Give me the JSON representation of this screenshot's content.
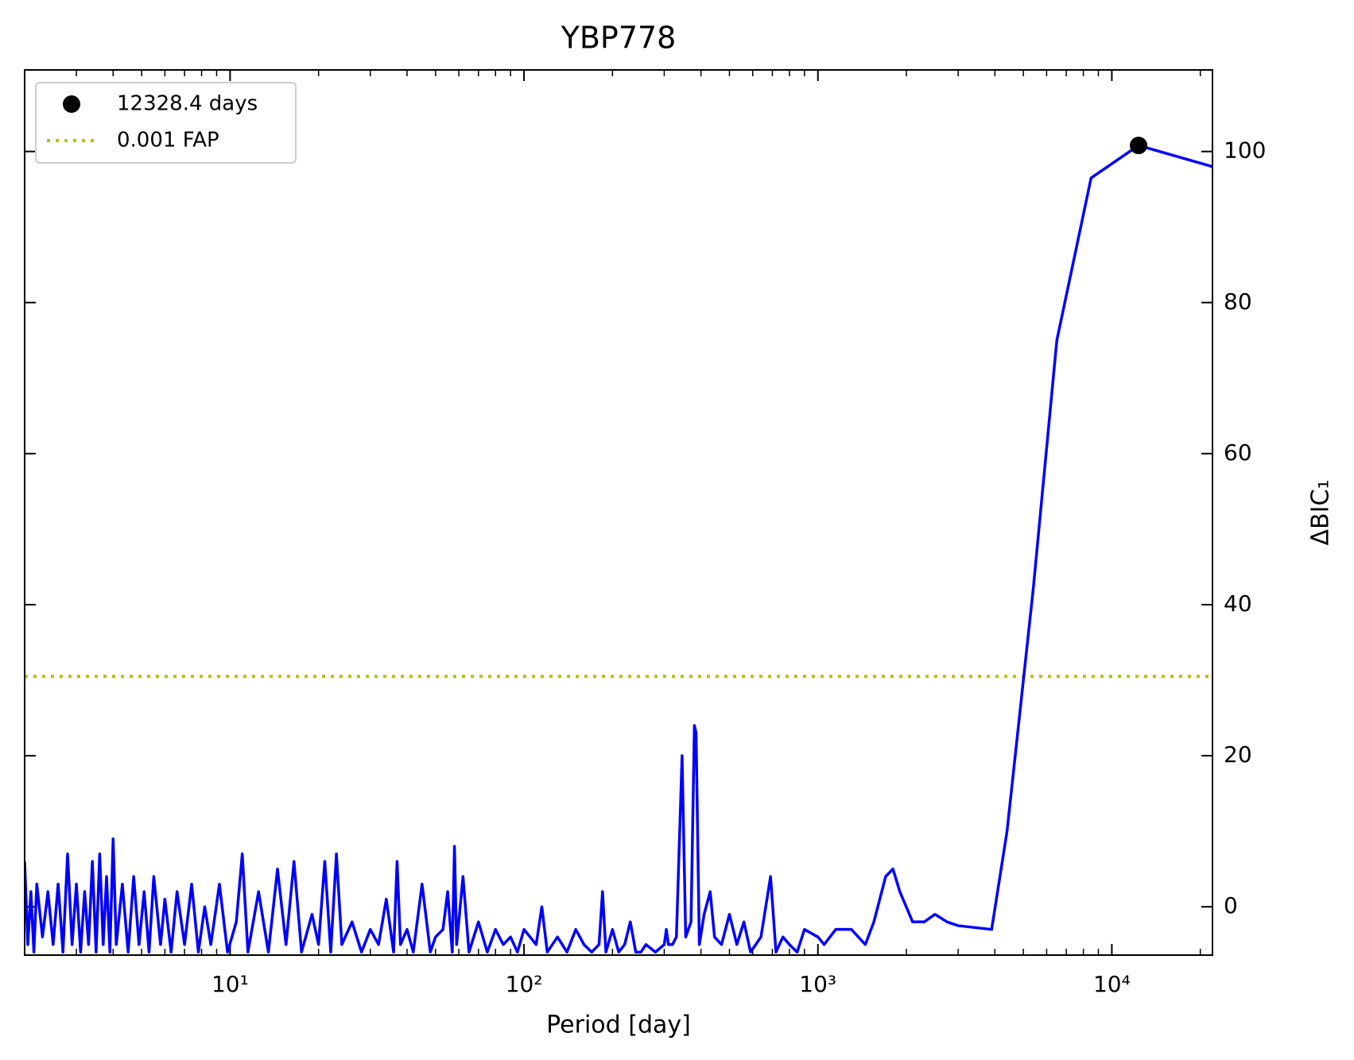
{
  "chart_data": {
    "type": "line",
    "title": "YBP778",
    "xlabel": "Period [day]",
    "ylabel": "ΔBIC₁",
    "xscale": "log",
    "xlim": [
      2,
      22000
    ],
    "ylim": [
      -6.4,
      110.8
    ],
    "xticks": [
      {
        "value": 10,
        "label": "10¹"
      },
      {
        "value": 100,
        "label": "10²"
      },
      {
        "value": 1000,
        "label": "10³"
      },
      {
        "value": 10000,
        "label": "10⁴"
      }
    ],
    "yticks": [
      0,
      20,
      40,
      60,
      80,
      100
    ],
    "y_axis_side": "right",
    "legend_position": "upper left",
    "x": [
      2.0,
      2.05,
      2.1,
      2.15,
      2.2,
      2.3,
      2.4,
      2.5,
      2.6,
      2.7,
      2.8,
      2.9,
      3.0,
      3.1,
      3.2,
      3.3,
      3.4,
      3.5,
      3.6,
      3.7,
      3.8,
      3.9,
      4.0,
      4.1,
      4.3,
      4.5,
      4.7,
      4.9,
      5.1,
      5.3,
      5.5,
      5.8,
      6.0,
      6.3,
      6.6,
      7.0,
      7.4,
      7.8,
      8.2,
      8.6,
      9.2,
      9.8,
      10.5,
      11,
      11.5,
      12.5,
      13.5,
      14.5,
      15.5,
      16.5,
      17.5,
      19,
      20,
      21,
      22,
      23,
      24,
      26,
      28,
      30,
      32,
      34,
      36,
      37,
      38,
      40,
      42,
      45,
      48,
      50,
      53,
      55,
      57,
      58,
      59,
      62,
      65,
      70,
      75,
      80,
      85,
      90,
      95,
      100,
      110,
      115,
      120,
      130,
      140,
      150,
      160,
      170,
      180,
      185,
      190,
      200,
      210,
      220,
      230,
      240,
      250,
      260,
      280,
      300,
      305,
      310,
      320,
      330,
      345,
      355,
      370,
      380,
      385,
      395,
      410,
      430,
      445,
      470,
      500,
      530,
      560,
      590,
      640,
      690,
      720,
      760,
      800,
      850,
      900,
      1000,
      1050,
      1150,
      1300,
      1450,
      1550,
      1700,
      1800,
      1900,
      2100,
      2300,
      2500,
      2750,
      3000,
      3900,
      4400,
      5400,
      6500,
      8500,
      12328.4,
      22000
    ],
    "series": [
      {
        "color": "#0000ff",
        "values": [
          6,
          -5,
          2,
          -6,
          3,
          -4,
          2,
          -5,
          3,
          -6,
          7,
          -5,
          3,
          -6,
          2,
          -5,
          6,
          -6,
          7,
          -5,
          4,
          -6,
          9,
          -5,
          3,
          -6,
          4,
          -5,
          2,
          -6,
          4,
          -5,
          1,
          -6,
          2,
          -5,
          3,
          -6,
          0,
          -5,
          3,
          -6,
          -2,
          7,
          -6,
          2,
          -6,
          5,
          -5,
          6,
          -6,
          -1,
          -5,
          6,
          -6,
          7,
          -5,
          -2,
          -6,
          -3,
          -5,
          1,
          -6,
          6,
          -5,
          -3,
          -6,
          3,
          -6,
          -4,
          -3,
          2,
          -6,
          8,
          -5,
          4,
          -6,
          -2,
          -6,
          -3,
          -5,
          -4,
          -6,
          -3,
          -5,
          0,
          -6,
          -4,
          -6,
          -3,
          -5,
          -6,
          -5,
          2,
          -6,
          -3,
          -6,
          -5,
          -2,
          -6,
          -6,
          -5,
          -6,
          -5,
          -3,
          -5,
          -5,
          -4,
          20,
          -4,
          -2,
          24,
          23,
          -5,
          -1,
          2,
          -4,
          -5,
          -1,
          -5,
          -2,
          -6,
          -4,
          4,
          -6,
          -4,
          -5,
          -6,
          -3,
          -4,
          -5,
          -3,
          -3,
          -5,
          -2,
          4,
          5,
          2,
          -2,
          -2,
          -1,
          -2,
          -2.5,
          -3,
          10,
          42,
          75,
          96.5,
          100.8,
          98
        ]
      }
    ],
    "peak": {
      "x": 12328.4,
      "y": 100.8,
      "label": "12328.4 days",
      "color": "#000000"
    },
    "threshold": {
      "value": 30.5,
      "label": "0.001 FAP",
      "color": "#bfbf00"
    }
  }
}
